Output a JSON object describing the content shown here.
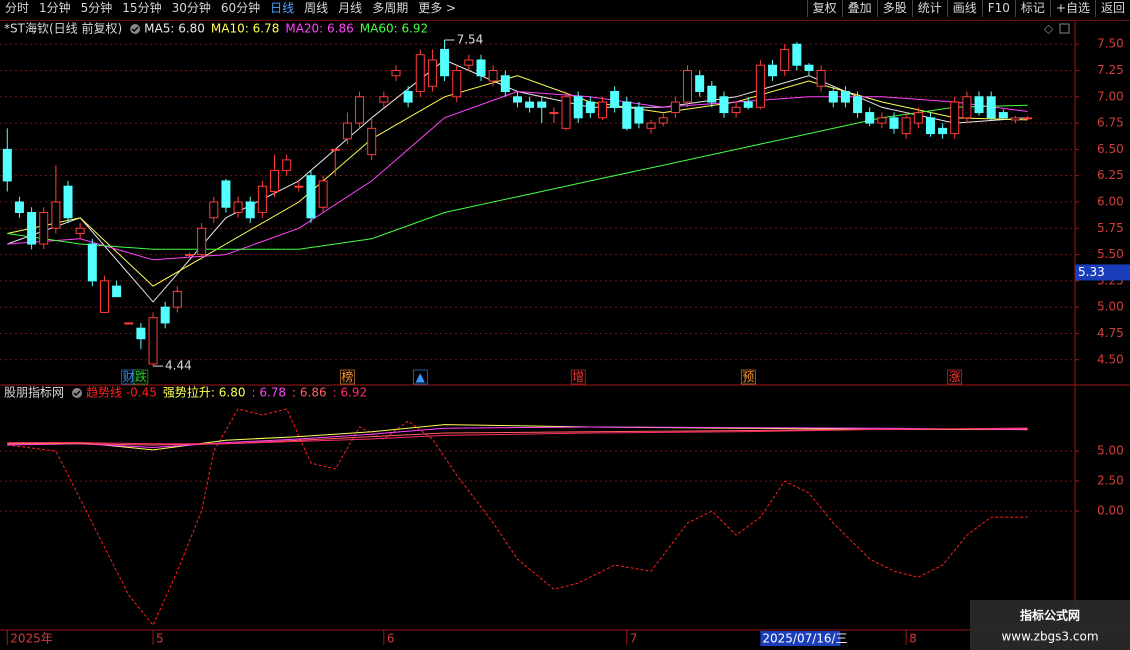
{
  "toolbar": {
    "periods": [
      "分时",
      "1分钟",
      "5分钟",
      "15分钟",
      "30分钟",
      "60分钟",
      "日线",
      "周线",
      "月线",
      "多周期",
      "更多 >"
    ],
    "active_period": 6,
    "tools": [
      "复权",
      "叠加",
      "多股",
      "统计",
      "画线",
      "F10",
      "标记",
      "+自选",
      "返回"
    ]
  },
  "x_axis": {
    "xlim": [
      -0.6,
      87.9
    ],
    "xticks": [
      {
        "value": 0,
        "label": "2025年"
      },
      {
        "value": 12,
        "label": "5"
      },
      {
        "value": 31,
        "label": "6"
      },
      {
        "value": 51,
        "label": "7"
      },
      {
        "value": 74,
        "label": "8"
      }
    ],
    "cursor": {
      "x": 62,
      "label": "2025/07/16/三"
    }
  },
  "chart_data": [
    {
      "type": "candlestick",
      "title": "*ST海钦(日线 前复权)",
      "up_color": "#ff3c3c",
      "down_color": "#54ffff",
      "ylim": [
        4.26,
        7.73
      ],
      "yticks": [
        {
          "value": 7.5,
          "label": "7.50"
        },
        {
          "value": 7.25,
          "label": "7.25"
        },
        {
          "value": 7,
          "label": "7.00"
        },
        {
          "value": 6.75,
          "label": "6.75"
        },
        {
          "value": 6.5,
          "label": "6.50"
        },
        {
          "value": 6.25,
          "label": "6.25"
        },
        {
          "value": 6,
          "label": "6.00"
        },
        {
          "value": 5.75,
          "label": "5.75"
        },
        {
          "value": 5.5,
          "label": "5.50"
        },
        {
          "value": 5.25,
          "label": "5.25"
        },
        {
          "value": 5,
          "label": "5.00"
        },
        {
          "value": 4.75,
          "label": "4.75"
        },
        {
          "value": 4.5,
          "label": "4.50"
        }
      ],
      "grid": true,
      "ohlc": [
        [
          6.5,
          6.7,
          6.1,
          6.2
        ],
        [
          6.0,
          6.05,
          5.85,
          5.9
        ],
        [
          5.9,
          5.95,
          5.55,
          5.6
        ],
        [
          5.6,
          5.95,
          5.55,
          5.9
        ],
        [
          5.75,
          6.35,
          5.7,
          6.0
        ],
        [
          6.15,
          6.2,
          5.8,
          5.85
        ],
        [
          5.7,
          5.8,
          5.65,
          5.75
        ],
        [
          5.6,
          5.65,
          5.2,
          5.25
        ],
        [
          4.95,
          5.3,
          4.95,
          5.25
        ],
        [
          5.2,
          5.25,
          5.1,
          5.1
        ],
        [
          4.85,
          4.85,
          4.85,
          4.85
        ],
        [
          4.8,
          4.85,
          4.6,
          4.7
        ],
        [
          4.46,
          4.95,
          4.44,
          4.9
        ],
        [
          5.0,
          5.05,
          4.8,
          4.85
        ],
        [
          5.0,
          5.2,
          4.95,
          5.15
        ],
        [
          5.5,
          5.52,
          5.48,
          5.5
        ],
        [
          5.5,
          5.8,
          5.45,
          5.75
        ],
        [
          5.85,
          6.05,
          5.8,
          6.0
        ],
        [
          6.2,
          6.22,
          5.9,
          5.95
        ],
        [
          5.9,
          6.05,
          5.85,
          6.0
        ],
        [
          6.0,
          6.05,
          5.8,
          5.85
        ],
        [
          5.9,
          6.2,
          5.85,
          6.15
        ],
        [
          6.1,
          6.45,
          6.05,
          6.3
        ],
        [
          6.3,
          6.45,
          6.25,
          6.4
        ],
        [
          6.15,
          6.2,
          6.1,
          6.15
        ],
        [
          6.25,
          6.3,
          5.8,
          5.85
        ],
        [
          5.95,
          6.25,
          5.9,
          6.2
        ],
        [
          6.5,
          6.5,
          6.25,
          6.5
        ],
        [
          6.6,
          6.85,
          6.55,
          6.75
        ],
        [
          6.75,
          7.05,
          6.7,
          7.0
        ],
        [
          6.45,
          6.8,
          6.4,
          6.7
        ],
        [
          6.95,
          7.05,
          6.9,
          7.0
        ],
        [
          7.2,
          7.3,
          7.15,
          7.25
        ],
        [
          7.05,
          7.1,
          6.9,
          6.95
        ],
        [
          7.05,
          7.45,
          7.0,
          7.4
        ],
        [
          7.1,
          7.45,
          7.05,
          7.35
        ],
        [
          7.45,
          7.54,
          7.15,
          7.2
        ],
        [
          7.0,
          7.3,
          6.95,
          7.25
        ],
        [
          7.3,
          7.4,
          7.25,
          7.35
        ],
        [
          7.35,
          7.4,
          7.15,
          7.2
        ],
        [
          7.15,
          7.3,
          7.1,
          7.25
        ],
        [
          7.2,
          7.25,
          7.0,
          7.05
        ],
        [
          7.0,
          7.05,
          6.9,
          6.95
        ],
        [
          6.95,
          7.0,
          6.85,
          6.9
        ],
        [
          6.95,
          7.0,
          6.75,
          6.9
        ],
        [
          6.85,
          6.9,
          6.75,
          6.85
        ],
        [
          6.7,
          7.05,
          6.68,
          7.0
        ],
        [
          7.0,
          7.05,
          6.75,
          6.8
        ],
        [
          6.95,
          7.0,
          6.8,
          6.85
        ],
        [
          6.8,
          7.0,
          6.78,
          6.95
        ],
        [
          7.05,
          7.1,
          6.85,
          6.9
        ],
        [
          6.95,
          7.0,
          6.68,
          6.7
        ],
        [
          6.9,
          6.95,
          6.7,
          6.75
        ],
        [
          6.7,
          6.78,
          6.65,
          6.75
        ],
        [
          6.75,
          6.85,
          6.72,
          6.8
        ],
        [
          6.85,
          7.0,
          6.8,
          6.95
        ],
        [
          6.95,
          7.3,
          6.9,
          7.25
        ],
        [
          7.2,
          7.25,
          7.0,
          7.05
        ],
        [
          7.1,
          7.15,
          6.9,
          6.95
        ],
        [
          7.0,
          7.05,
          6.8,
          6.85
        ],
        [
          6.85,
          6.95,
          6.8,
          6.9
        ],
        [
          6.95,
          7.0,
          6.88,
          6.9
        ],
        [
          6.9,
          7.35,
          6.88,
          7.3
        ],
        [
          7.3,
          7.35,
          7.15,
          7.2
        ],
        [
          7.25,
          7.5,
          7.2,
          7.45
        ],
        [
          7.5,
          7.52,
          7.25,
          7.3
        ],
        [
          7.3,
          7.32,
          7.2,
          7.25
        ],
        [
          7.1,
          7.3,
          7.05,
          7.25
        ],
        [
          7.05,
          7.1,
          6.9,
          6.95
        ],
        [
          7.05,
          7.1,
          6.9,
          6.95
        ],
        [
          7.0,
          7.05,
          6.8,
          6.85
        ],
        [
          6.85,
          6.9,
          6.72,
          6.75
        ],
        [
          6.75,
          6.85,
          6.7,
          6.8
        ],
        [
          6.8,
          6.85,
          6.65,
          6.7
        ],
        [
          6.65,
          6.85,
          6.6,
          6.8
        ],
        [
          6.75,
          6.9,
          6.7,
          6.85
        ],
        [
          6.8,
          6.85,
          6.62,
          6.65
        ],
        [
          6.7,
          6.75,
          6.6,
          6.65
        ],
        [
          6.65,
          7.0,
          6.6,
          6.95
        ],
        [
          6.8,
          7.05,
          6.75,
          7.0
        ],
        [
          7.0,
          7.05,
          6.82,
          6.85
        ],
        [
          7.0,
          7.05,
          6.78,
          6.8
        ],
        [
          6.85,
          6.88,
          6.78,
          6.8
        ],
        [
          6.78,
          6.82,
          6.75,
          6.8
        ],
        [
          6.8,
          6.82,
          6.78,
          6.8
        ]
      ],
      "series": [
        {
          "name": "MA5: 6.80",
          "color": "#e8e8e8",
          "x": [
            0,
            6,
            12,
            18,
            24,
            30,
            36,
            42,
            48,
            54,
            60,
            66,
            72,
            78,
            84
          ],
          "values": [
            5.6,
            5.85,
            5.05,
            5.85,
            6.2,
            6.8,
            7.35,
            7.05,
            6.9,
            6.9,
            7.0,
            7.2,
            6.9,
            6.75,
            6.8
          ]
        },
        {
          "name": "MA10: 6.78",
          "color": "#ffff55",
          "x": [
            0,
            6,
            12,
            18,
            24,
            30,
            36,
            42,
            48,
            54,
            60,
            66,
            72,
            78,
            84
          ],
          "values": [
            5.7,
            5.85,
            5.2,
            5.6,
            6.0,
            6.6,
            7.0,
            7.2,
            6.95,
            6.85,
            6.95,
            7.15,
            6.95,
            6.8,
            6.78
          ]
        },
        {
          "name": "MA20: 6.86",
          "color": "#ff44ff",
          "x": [
            0,
            6,
            12,
            18,
            24,
            30,
            36,
            42,
            48,
            54,
            60,
            66,
            72,
            78,
            84
          ],
          "values": [
            5.6,
            5.65,
            5.45,
            5.5,
            5.75,
            6.2,
            6.8,
            7.05,
            7.0,
            6.9,
            6.95,
            7.0,
            7.0,
            6.95,
            6.86
          ]
        },
        {
          "name": "MA60: 6.92",
          "color": "#44ff44",
          "x": [
            0,
            6,
            12,
            18,
            24,
            30,
            36,
            42,
            48,
            54,
            60,
            66,
            72,
            78,
            84
          ],
          "values": [
            5.7,
            5.6,
            5.55,
            5.55,
            5.55,
            5.65,
            5.9,
            6.05,
            6.2,
            6.35,
            6.5,
            6.65,
            6.8,
            6.9,
            6.92
          ]
        }
      ],
      "high": {
        "x": 36,
        "value": 7.54
      },
      "low": {
        "x": 12,
        "value": 4.44
      },
      "cursor_price": 5.33,
      "events": [
        {
          "x": 10,
          "label": "财",
          "color": "#3399ff"
        },
        {
          "x": 11,
          "label": "跌",
          "color": "#33cc33"
        },
        {
          "x": 28,
          "label": "榜",
          "color": "#ff9933"
        },
        {
          "x": 34,
          "label": "▲",
          "color": "#3399ff"
        },
        {
          "x": 47,
          "label": "增",
          "color": "#ff3333"
        },
        {
          "x": 61,
          "label": "预",
          "color": "#ff9933"
        },
        {
          "x": 78,
          "label": "涨",
          "color": "#ff3333"
        }
      ]
    },
    {
      "type": "line",
      "title": "股朋指标网",
      "ylim": [
        -9.9,
        10.5
      ],
      "yticks": [
        {
          "value": 5,
          "label": "5.00"
        },
        {
          "value": 2.5,
          "label": "2.50"
        },
        {
          "value": 0,
          "label": "0.00"
        }
      ],
      "grid": true,
      "series": [
        {
          "name": "趋势线 -0.45",
          "color": "#ff2020",
          "dashed": true,
          "x": [
            0,
            4,
            7,
            10,
            12,
            14,
            16,
            17,
            19,
            21,
            23,
            25,
            27,
            29,
            31,
            33,
            35,
            37,
            40,
            42,
            45,
            47,
            50,
            53,
            56,
            58,
            60,
            62,
            64,
            66,
            68,
            71,
            73,
            75,
            77,
            79,
            81,
            84
          ],
          "values": [
            5.5,
            5.0,
            -1,
            -7,
            -9.5,
            -5,
            0,
            5,
            8.5,
            8,
            8.5,
            4,
            3.5,
            7,
            6,
            7.5,
            6,
            3,
            -1,
            -4,
            -6.5,
            -6,
            -4.5,
            -5,
            -1,
            0,
            -2,
            -0.5,
            2.5,
            1.5,
            -1,
            -4,
            -5,
            -5.5,
            -4.5,
            -2,
            -0.5,
            -0.5
          ]
        },
        {
          "name": "强势拉升: 6.80",
          "color": "#ffff55",
          "x": [
            0,
            6,
            12,
            18,
            24,
            30,
            36,
            48,
            60,
            72,
            84
          ],
          "values": [
            5.6,
            5.7,
            5.1,
            5.9,
            6.2,
            6.6,
            7.2,
            7.0,
            6.9,
            6.8,
            6.8
          ]
        },
        {
          "name": ": 6.78",
          "color": "#ff44ff",
          "x": [
            0,
            6,
            12,
            18,
            24,
            30,
            36,
            48,
            60,
            72,
            84
          ],
          "values": [
            5.5,
            5.6,
            5.3,
            5.7,
            6.0,
            6.4,
            6.9,
            7.0,
            6.95,
            6.9,
            6.78
          ]
        },
        {
          "name": ": 6.86",
          "color": "#ff6060",
          "x": [
            0,
            6,
            12,
            18,
            24,
            30,
            36,
            48,
            60,
            72,
            84
          ],
          "values": [
            5.6,
            5.6,
            5.5,
            5.6,
            5.9,
            6.2,
            6.5,
            6.6,
            6.7,
            6.8,
            6.86
          ]
        },
        {
          "name": ": 6.92",
          "color": "#ff2a6a",
          "x": [
            0,
            6,
            12,
            18,
            24,
            30,
            36,
            48,
            60,
            72,
            84
          ],
          "values": [
            5.7,
            5.7,
            5.6,
            5.6,
            5.8,
            6.0,
            6.3,
            6.5,
            6.6,
            6.8,
            6.92
          ]
        }
      ]
    }
  ],
  "watermark": {
    "title": "指标公式网",
    "url": "www.zbgs3.com"
  }
}
